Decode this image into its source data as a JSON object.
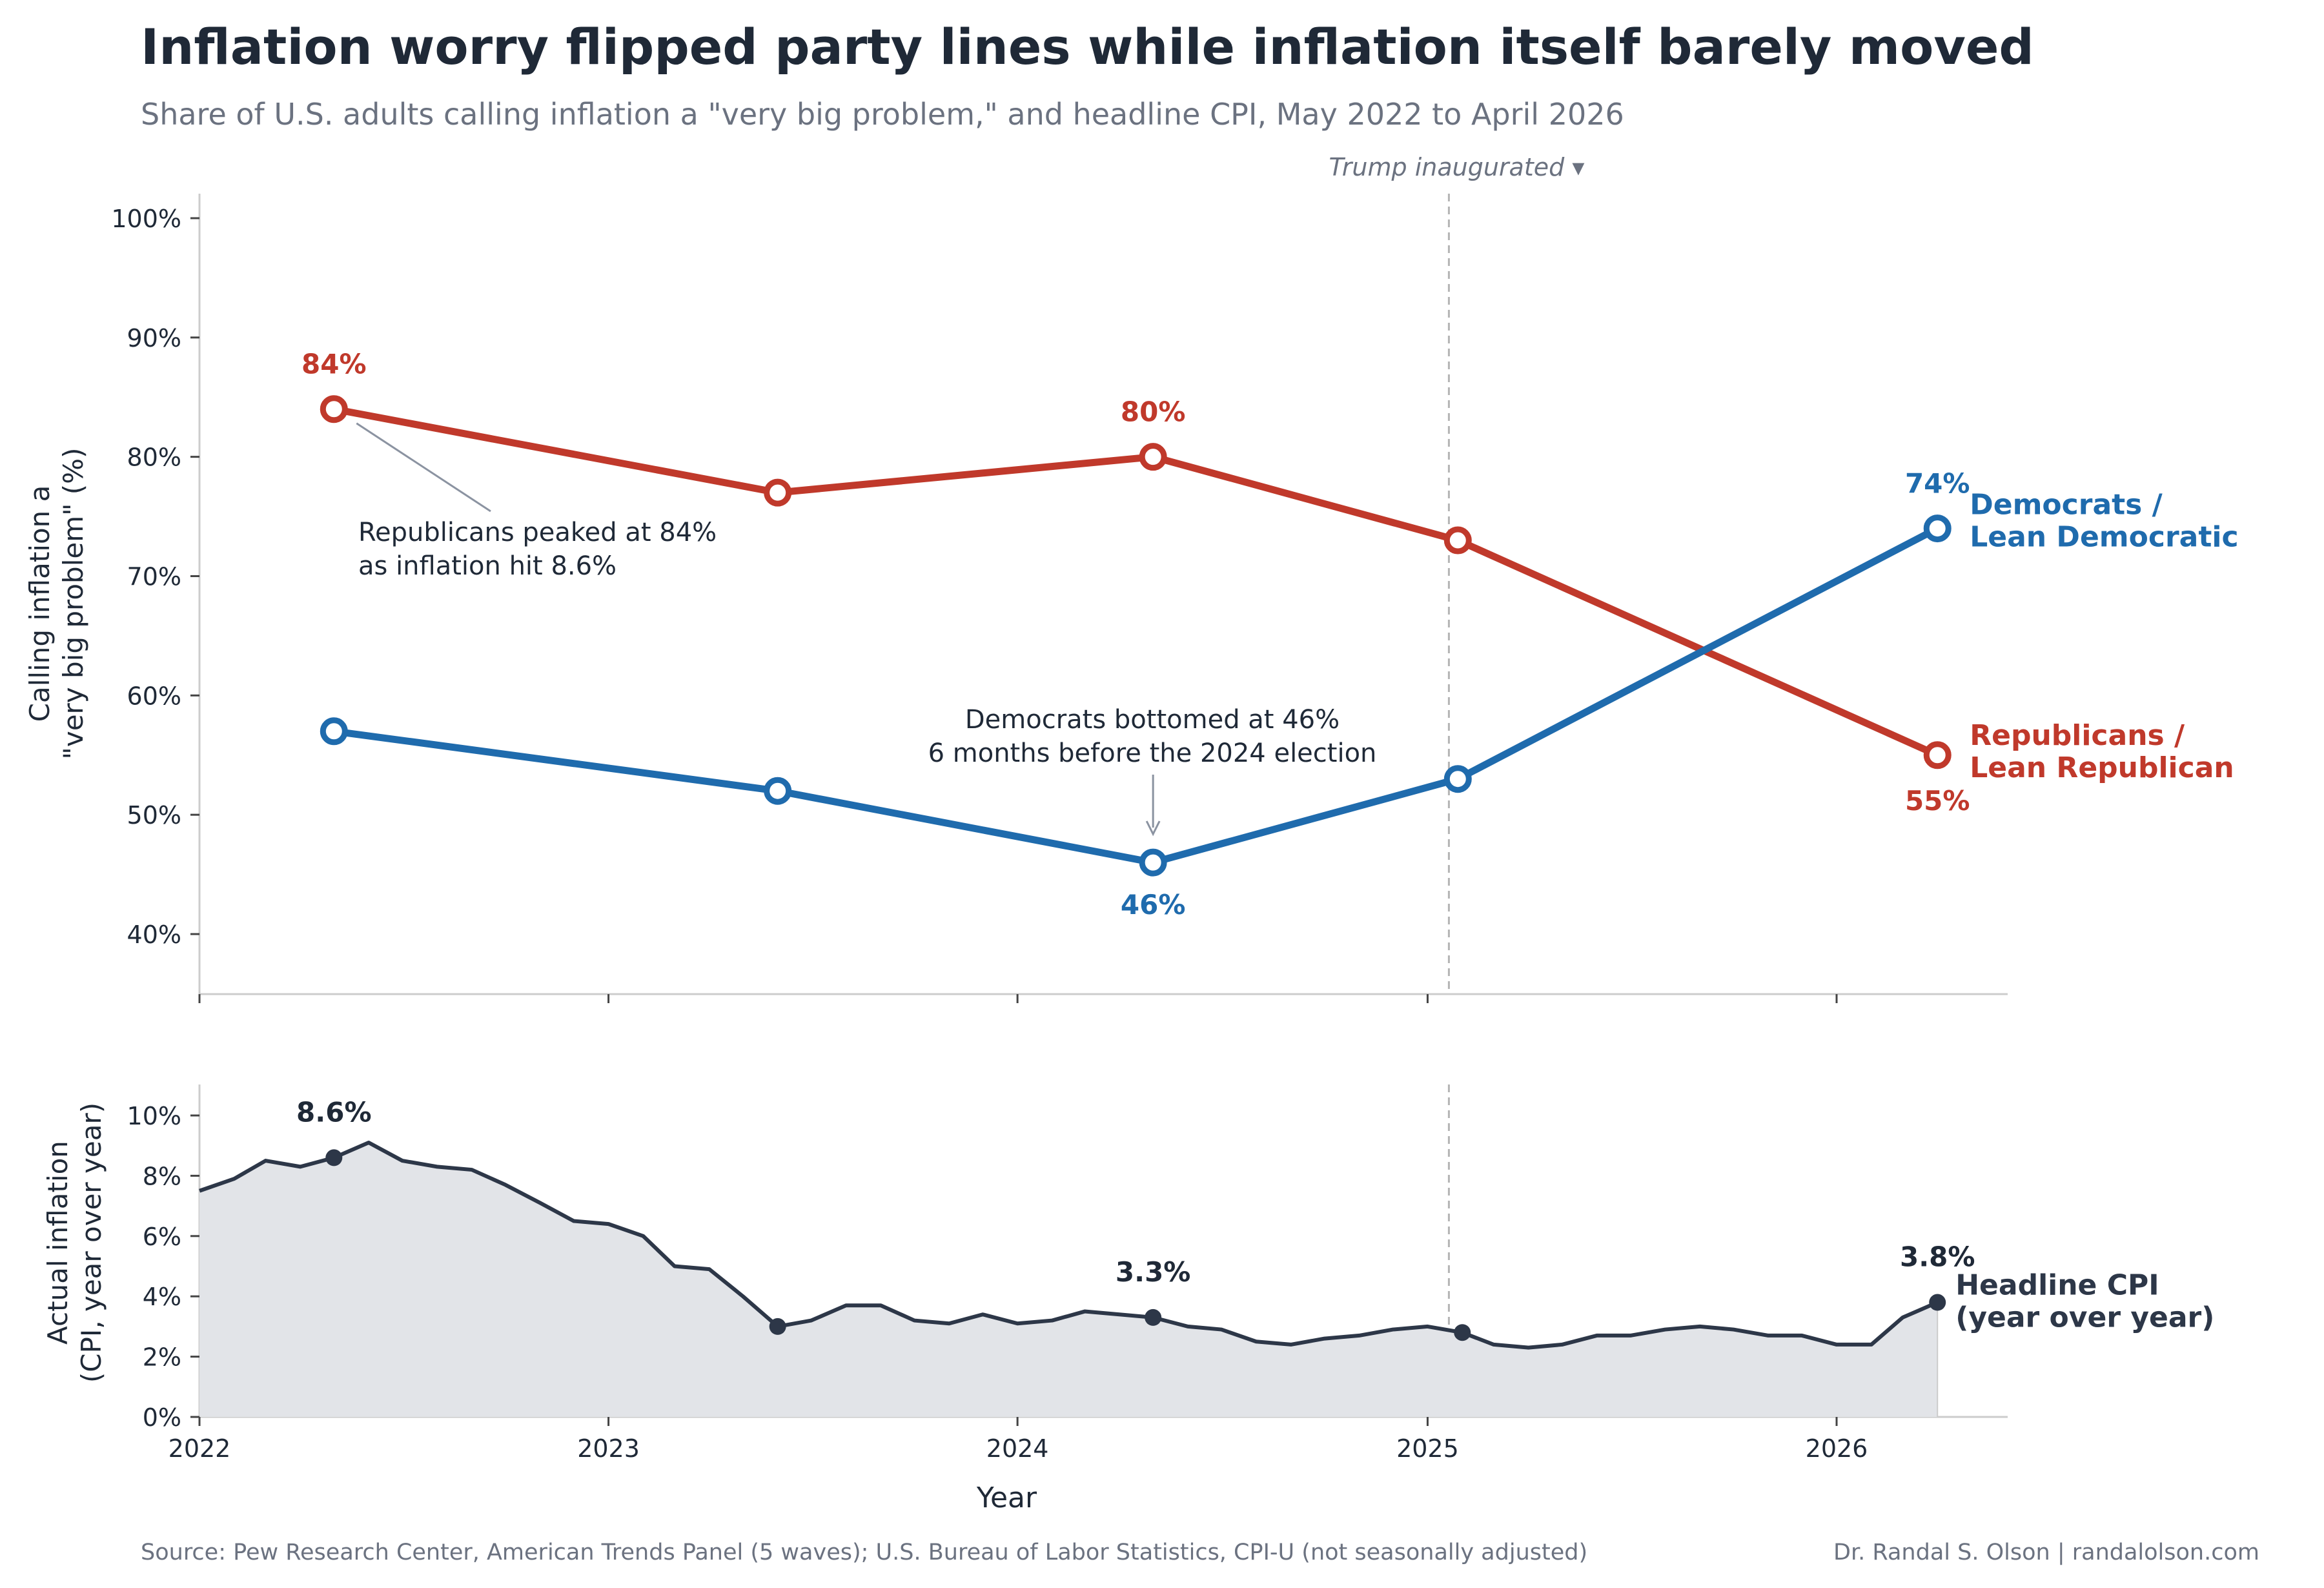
{
  "title": "Inflation worry flipped party lines while inflation itself barely moved",
  "subtitle": "Share of U.S. adults calling inflation a \"very big problem,\" and headline CPI, May 2022 to April 2026",
  "footer": {
    "source": "Source: Pew Research Center, American Trends Panel (5 waves);  U.S. Bureau of Labor Statistics, CPI-U (not seasonally adjusted)",
    "credit": "Dr. Randal S. Olson  |  randalolson.com"
  },
  "colors": {
    "republican": "#c0392b",
    "democrat": "#1f6bad",
    "cpi": "#2d3748",
    "cpi_fill": "#e2e4e8",
    "axis": "#cccccc",
    "vline": "#b5b5b5",
    "annotation": "#8b93a1",
    "muted": "#6b7280",
    "text": "#1f2937"
  },
  "chart_data": [
    {
      "type": "line",
      "title": "",
      "ylabel": "Calling inflation a\n\"very big problem\" (%)",
      "ylim": [
        35,
        102
      ],
      "yticks": [
        40,
        50,
        60,
        70,
        80,
        90,
        100
      ],
      "ytick_labels": [
        "40%",
        "50%",
        "60%",
        "70%",
        "80%",
        "90%",
        "100%"
      ],
      "grid": false,
      "vline": {
        "x": "2025-01-20",
        "label": "Trump inaugurated  ▾"
      },
      "series": [
        {
          "name": "Republicans /\nLean Republican",
          "color": "#c0392b",
          "x": [
            "2022-05-01",
            "2023-06-01",
            "2024-05-01",
            "2025-01-28",
            "2026-04-01"
          ],
          "y": [
            84,
            77,
            80,
            73,
            55
          ],
          "point_labels": [
            {
              "index": 0,
              "text": "84%"
            },
            {
              "index": 2,
              "text": "80%"
            },
            {
              "index": 4,
              "text": "55%"
            }
          ]
        },
        {
          "name": "Democrats /\nLean Democratic",
          "color": "#1f6bad",
          "x": [
            "2022-05-01",
            "2023-06-01",
            "2024-05-01",
            "2025-01-28",
            "2026-04-01"
          ],
          "y": [
            57,
            52,
            46,
            53,
            74
          ],
          "point_labels": [
            {
              "index": 2,
              "text": "46%"
            },
            {
              "index": 4,
              "text": "74%"
            }
          ]
        }
      ],
      "annotations": [
        {
          "text": "Republicans peaked at 84%\nas inflation hit 8.6%",
          "x": "2022-05-01",
          "y": 84
        },
        {
          "text": "Democrats bottomed at 46%\n6 months before the 2024 election",
          "x": "2024-05-01",
          "y": 46
        }
      ]
    },
    {
      "type": "area",
      "title": "",
      "xlabel": "Year",
      "ylabel": "Actual inflation\n(CPI, year over year)",
      "ylim": [
        0,
        11
      ],
      "yticks": [
        0,
        2,
        4,
        6,
        8,
        10
      ],
      "ytick_labels": [
        "0%",
        "2%",
        "4%",
        "6%",
        "8%",
        "10%"
      ],
      "xlim": [
        "2022-01-01",
        "2026-06-01"
      ],
      "xticks": [
        "2022",
        "2023",
        "2024",
        "2025",
        "2026"
      ],
      "series": [
        {
          "name": "Headline CPI\n(year over year)",
          "color": "#2d3748",
          "x": [
            "2022-01",
            "2022-02",
            "2022-03",
            "2022-04",
            "2022-05",
            "2022-06",
            "2022-07",
            "2022-08",
            "2022-09",
            "2022-10",
            "2022-11",
            "2022-12",
            "2023-01",
            "2023-02",
            "2023-03",
            "2023-04",
            "2023-05",
            "2023-06",
            "2023-07",
            "2023-08",
            "2023-09",
            "2023-10",
            "2023-11",
            "2023-12",
            "2024-01",
            "2024-02",
            "2024-03",
            "2024-04",
            "2024-05",
            "2024-06",
            "2024-07",
            "2024-08",
            "2024-09",
            "2024-10",
            "2024-11",
            "2024-12",
            "2025-01",
            "2025-02",
            "2025-03",
            "2025-04",
            "2025-05",
            "2025-06",
            "2025-07",
            "2025-08",
            "2025-09",
            "2025-10",
            "2025-11",
            "2025-12",
            "2026-01",
            "2026-02",
            "2026-03",
            "2026-04"
          ],
          "y": [
            7.5,
            7.9,
            8.5,
            8.3,
            8.6,
            9.1,
            8.5,
            8.3,
            8.2,
            7.7,
            7.1,
            6.5,
            6.4,
            6.0,
            5.0,
            4.9,
            4.0,
            3.0,
            3.2,
            3.7,
            3.7,
            3.2,
            3.1,
            3.4,
            3.1,
            3.2,
            3.5,
            3.4,
            3.3,
            3.0,
            2.9,
            2.5,
            2.4,
            2.6,
            2.7,
            2.9,
            3.0,
            2.8,
            2.4,
            2.3,
            2.4,
            2.7,
            2.7,
            2.9,
            3.0,
            2.9,
            2.7,
            2.7,
            2.4,
            2.4,
            3.3,
            3.8
          ],
          "markers": [
            "2022-05",
            "2023-06",
            "2024-05",
            "2025-02",
            "2026-04"
          ],
          "point_labels": [
            {
              "x": "2022-05",
              "text": "8.6%"
            },
            {
              "x": "2024-05",
              "text": "3.3%"
            },
            {
              "x": "2026-04",
              "text": "3.8%"
            }
          ]
        }
      ]
    }
  ]
}
